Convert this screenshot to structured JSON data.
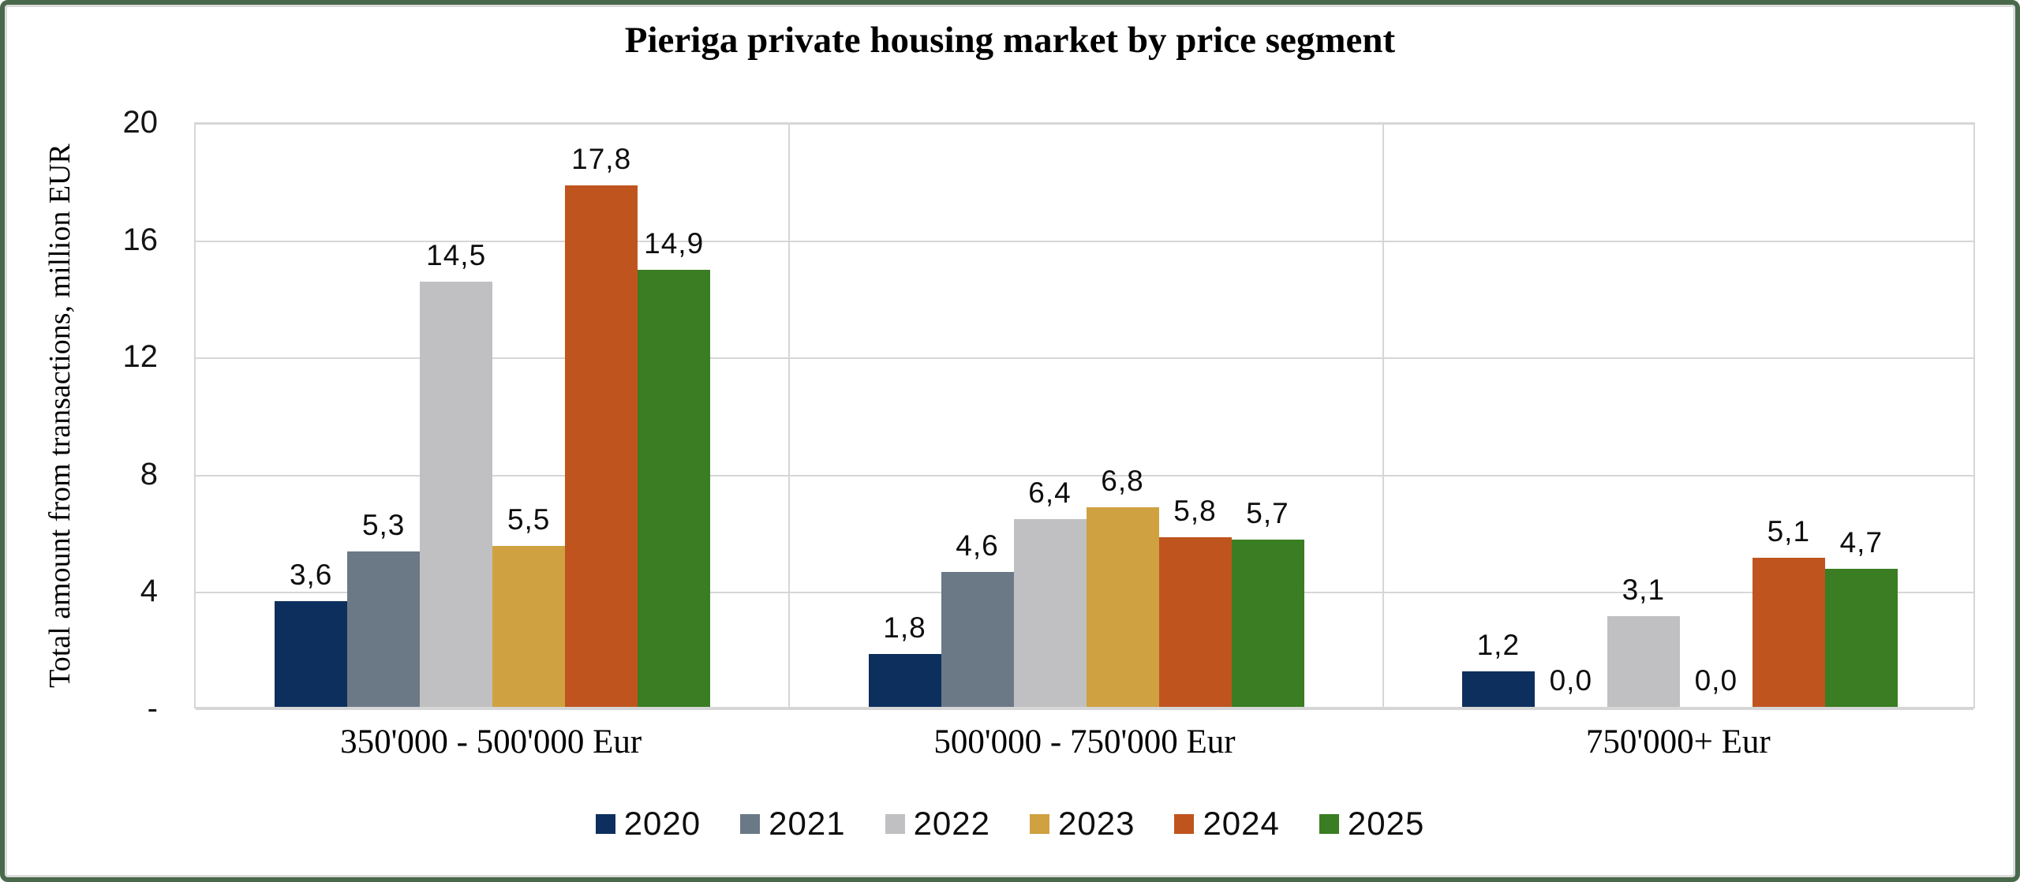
{
  "frame": {
    "border_color": "#4A694C"
  },
  "chart_data": {
    "type": "bar",
    "title": "Pieriga private housing market by price segment",
    "ylabel": "Total amount from transactions, million EUR",
    "xlabel": "",
    "ylim": [
      0,
      20
    ],
    "ytick_values": [
      20,
      16,
      12,
      8,
      4,
      0
    ],
    "ytick_labels": [
      "20",
      "16",
      "12",
      "8",
      "4",
      "-"
    ],
    "grid": "horizontal gridlines on, vertical panel separators between categories",
    "legend_position": "bottom-center",
    "decimal_separator": ",",
    "categories": [
      "350'000 - 500'000 Eur",
      "500'000 - 750'000 Eur",
      "750'000+ Eur"
    ],
    "series": [
      {
        "name": "2020",
        "color": "#0D2F5E",
        "values": [
          3.6,
          1.8,
          1.2
        ],
        "labels": [
          "3,6",
          "1,8",
          "1,2"
        ]
      },
      {
        "name": "2021",
        "color": "#6B7987",
        "values": [
          5.3,
          4.6,
          0.0
        ],
        "labels": [
          "5,3",
          "4,6",
          "0,0"
        ]
      },
      {
        "name": "2022",
        "color": "#C0C0C2",
        "values": [
          14.5,
          6.4,
          3.1
        ],
        "labels": [
          "14,5",
          "6,4",
          "3,1"
        ]
      },
      {
        "name": "2023",
        "color": "#CFA140",
        "values": [
          5.5,
          6.8,
          0.0
        ],
        "labels": [
          "5,5",
          "6,8",
          "0,0"
        ]
      },
      {
        "name": "2024",
        "color": "#C0541E",
        "values": [
          17.8,
          5.8,
          5.1
        ],
        "labels": [
          "17,8",
          "5,8",
          "5,1"
        ]
      },
      {
        "name": "2025",
        "color": "#3A7D22",
        "values": [
          14.9,
          5.7,
          4.7
        ],
        "labels": [
          "14,9",
          "5,7",
          "4,7"
        ]
      }
    ]
  }
}
